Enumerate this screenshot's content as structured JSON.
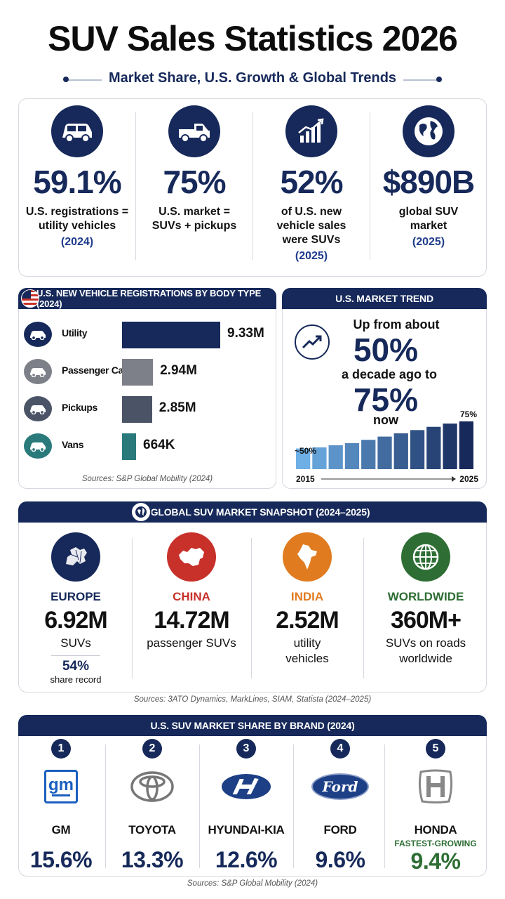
{
  "title": "SUV Sales Statistics 2026",
  "subtitle": "Market Share, U.S. Growth & Global Trends",
  "stats": [
    {
      "value": "59.1%",
      "desc_line1": "U.S. registrations =",
      "desc_line2": "utility vehicles",
      "desc_line3": "",
      "year": "(2024)",
      "icon": "suv-icon"
    },
    {
      "value": "75%",
      "desc_line1": "U.S. market =",
      "desc_line2": "SUVs + pickups",
      "desc_line3": "",
      "year": "",
      "icon": "pickup-truck-icon"
    },
    {
      "value": "52%",
      "desc_line1": "of U.S. new",
      "desc_line2": "vehicle sales",
      "desc_line3": "were SUVs",
      "year": "(2025)",
      "icon": "growth-chart-icon"
    },
    {
      "value": "$890B",
      "desc_line1": "global SUV",
      "desc_line2": "market",
      "desc_line3": "",
      "year": "(2025)",
      "icon": "globe-icon"
    }
  ],
  "registrations": {
    "header": "U.S. NEW VEHICLE REGISTRATIONS BY BODY TYPE (2024)",
    "source": "Sources: S&P Global Mobility (2024)",
    "chart_data": {
      "type": "bar",
      "categories": [
        "Utility",
        "Passenger Cars",
        "Pickups",
        "Vans"
      ],
      "values": [
        9.33,
        2.94,
        2.85,
        0.664
      ],
      "value_labels": [
        "9.33M",
        "2.94M",
        "2.85M",
        "664K"
      ],
      "unit": "M",
      "colors": [
        "#16295a",
        "#7d8089",
        "#4b5467",
        "#2a7a7c"
      ]
    }
  },
  "trend": {
    "header": "U.S. MARKET TREND",
    "line1": "Up from about",
    "from_value": "50%",
    "line2": "a decade ago to",
    "to_value": "75%",
    "line3": "now",
    "chart_data": {
      "type": "bar",
      "x": [
        2015,
        2016,
        2017,
        2018,
        2019,
        2020,
        2021,
        2022,
        2023,
        2024,
        2025
      ],
      "values": [
        50,
        51,
        53,
        55,
        58,
        61,
        64,
        67,
        70,
        73,
        75
      ],
      "start_label": "~50%",
      "end_label": "75%",
      "x_start_label": "2015",
      "x_end_label": "2025"
    }
  },
  "global": {
    "header": "GLOBAL SUV MARKET SNAPSHOT (2024–2025)",
    "source": "Sources: 3ATO Dynamics, MarkLines, SIAM, Statista (2024–2025)",
    "regions": [
      {
        "name": "EUROPE",
        "value": "6.92M",
        "label_line1": "SUVs",
        "label_line2": "",
        "extra_value": "54%",
        "extra_label": "share record",
        "color": "#16295a",
        "icon": "europe-map-icon"
      },
      {
        "name": "CHINA",
        "value": "14.72M",
        "label_line1": "passenger SUVs",
        "label_line2": "",
        "color": "#c8302a",
        "icon": "china-map-icon"
      },
      {
        "name": "INDIA",
        "value": "2.52M",
        "label_line1": "utility",
        "label_line2": "vehicles",
        "color": "#e07b1f",
        "icon": "india-map-icon"
      },
      {
        "name": "WORLDWIDE",
        "value": "360M+",
        "label_line1": "SUVs on roads",
        "label_line2": "worldwide",
        "color": "#2e6e34",
        "icon": "world-grid-icon"
      }
    ]
  },
  "brands": {
    "header": "U.S. SUV MARKET SHARE BY BRAND (2024)",
    "source": "Sources: S&P Global Mobility (2024)",
    "items": [
      {
        "rank": "1",
        "name": "GM",
        "share": "15.6%",
        "note": "",
        "logo_text": "gm"
      },
      {
        "rank": "2",
        "name": "TOYOTA",
        "share": "13.3%",
        "note": ""
      },
      {
        "rank": "3",
        "name": "HYUNDAI-KIA",
        "share": "12.6%",
        "note": ""
      },
      {
        "rank": "4",
        "name": "FORD",
        "share": "9.6%",
        "note": "",
        "logo_text": "Ford"
      },
      {
        "rank": "5",
        "name": "HONDA",
        "share": "9.4%",
        "note": "FASTEST-GROWING"
      }
    ]
  }
}
